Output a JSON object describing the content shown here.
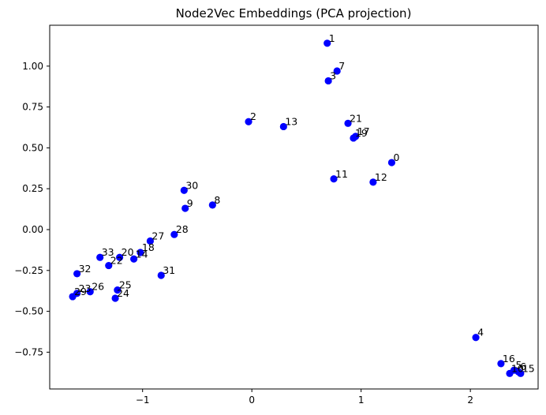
{
  "chart_data": {
    "type": "scatter",
    "title": "Node2Vec Embeddings (PCA projection)",
    "xlabel": "",
    "ylabel": "",
    "xlim": [
      -1.85,
      2.62
    ],
    "ylim": [
      -0.975,
      1.25
    ],
    "x_ticks": [
      {
        "value": -1,
        "label": "−1"
      },
      {
        "value": 0,
        "label": "0"
      },
      {
        "value": 1,
        "label": "1"
      },
      {
        "value": 2,
        "label": "2"
      }
    ],
    "y_ticks": [
      {
        "value": -0.75,
        "label": "−0.75"
      },
      {
        "value": -0.5,
        "label": "−0.50"
      },
      {
        "value": -0.25,
        "label": "−0.25"
      },
      {
        "value": 0.0,
        "label": "0.00"
      },
      {
        "value": 0.25,
        "label": "0.25"
      },
      {
        "value": 0.5,
        "label": "0.50"
      },
      {
        "value": 0.75,
        "label": "0.75"
      },
      {
        "value": 1.0,
        "label": "1.00"
      }
    ],
    "grid": false,
    "marker_color": "#0000ff",
    "points": [
      {
        "label": "0",
        "x": 1.28,
        "y": 0.41
      },
      {
        "label": "1",
        "x": 0.69,
        "y": 1.14
      },
      {
        "label": "2",
        "x": -0.03,
        "y": 0.66
      },
      {
        "label": "3",
        "x": 0.7,
        "y": 0.91
      },
      {
        "label": "4",
        "x": 2.05,
        "y": -0.66
      },
      {
        "label": "5",
        "x": 2.4,
        "y": -0.86
      },
      {
        "label": "6",
        "x": 2.44,
        "y": -0.87
      },
      {
        "label": "7",
        "x": 0.78,
        "y": 0.97
      },
      {
        "label": "8",
        "x": -0.36,
        "y": 0.15
      },
      {
        "label": "9",
        "x": -0.61,
        "y": 0.13
      },
      {
        "label": "10",
        "x": 2.36,
        "y": -0.88
      },
      {
        "label": "11",
        "x": 0.75,
        "y": 0.31
      },
      {
        "label": "12",
        "x": 1.11,
        "y": 0.29
      },
      {
        "label": "13",
        "x": 0.29,
        "y": 0.63
      },
      {
        "label": "14",
        "x": -1.08,
        "y": -0.18
      },
      {
        "label": "15",
        "x": 2.46,
        "y": -0.88
      },
      {
        "label": "16",
        "x": 2.28,
        "y": -0.82
      },
      {
        "label": "17",
        "x": 0.95,
        "y": 0.57
      },
      {
        "label": "18",
        "x": -1.02,
        "y": -0.14
      },
      {
        "label": "19",
        "x": 0.93,
        "y": 0.56
      },
      {
        "label": "20",
        "x": -1.21,
        "y": -0.17
      },
      {
        "label": "21",
        "x": 0.88,
        "y": 0.65
      },
      {
        "label": "22",
        "x": -1.31,
        "y": -0.22
      },
      {
        "label": "23",
        "x": -1.6,
        "y": -0.39
      },
      {
        "label": "24",
        "x": -1.25,
        "y": -0.42
      },
      {
        "label": "25",
        "x": -1.23,
        "y": -0.37
      },
      {
        "label": "26",
        "x": -1.48,
        "y": -0.38
      },
      {
        "label": "27",
        "x": -0.93,
        "y": -0.07
      },
      {
        "label": "28",
        "x": -0.71,
        "y": -0.03
      },
      {
        "label": "29",
        "x": -1.64,
        "y": -0.41
      },
      {
        "label": "30",
        "x": -0.62,
        "y": 0.24
      },
      {
        "label": "31",
        "x": -0.83,
        "y": -0.28
      },
      {
        "label": "32",
        "x": -1.6,
        "y": -0.27
      },
      {
        "label": "33",
        "x": -1.39,
        "y": -0.17
      }
    ]
  }
}
